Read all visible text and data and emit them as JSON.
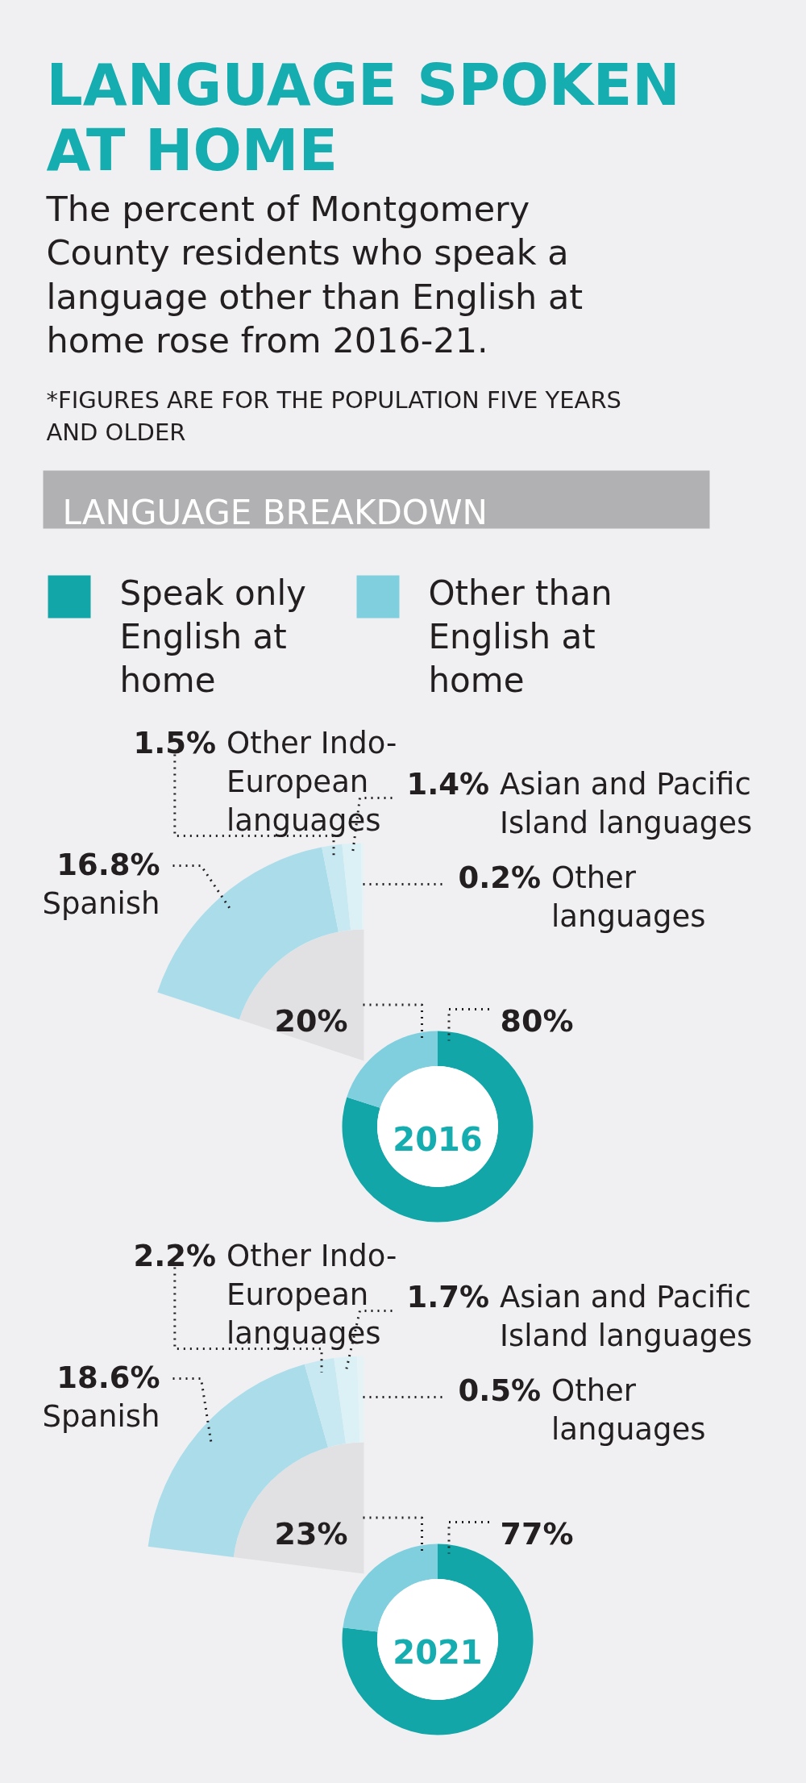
{
  "chart_data": [
    {
      "type": "donut",
      "title": "LANGUAGE SPOKEN AT HOME",
      "subtitle": "The percent of Montgomery County residents who speak a language other than English at home rose from 2016-21.",
      "annotations": [
        "*FIGURES ARE FOR THE POPULATION FIVE YEARS AND OLDER",
        "LANGUAGE BREAKDOWN"
      ],
      "categories": [
        "Speak only English at home",
        "Other than English at home"
      ],
      "colors": [
        "#12a6a8",
        "#7fcfdf"
      ],
      "legend": "top",
      "series": [
        {
          "name": "2016",
          "values": [
            80,
            20
          ],
          "value_labels": [
            "80%",
            "20%"
          ]
        },
        {
          "name": "2021",
          "values": [
            77,
            23
          ],
          "value_labels": [
            "77%",
            "23%"
          ]
        }
      ]
    },
    {
      "type": "donut",
      "categories": [
        "Spanish",
        "Other Indo-European languages",
        "Asian and Pacific Island languages",
        "Other languages"
      ],
      "colors": [
        "#aadcea",
        "#c8e9f1",
        "#dbf1f6",
        "#e6f3f6"
      ],
      "series": [
        {
          "values": [
            16.8,
            1.5,
            1.4,
            0.2
          ],
          "value_labels": [
            "16.8%",
            "1.5%",
            "1.4%",
            "0.2%"
          ]
        },
        {
          "values": [
            18.6,
            2.2,
            1.7,
            0.5
          ],
          "value_labels": [
            "18.6%",
            "2.2%",
            "1.7%",
            "0.5%"
          ]
        }
      ]
    }
  ]
}
